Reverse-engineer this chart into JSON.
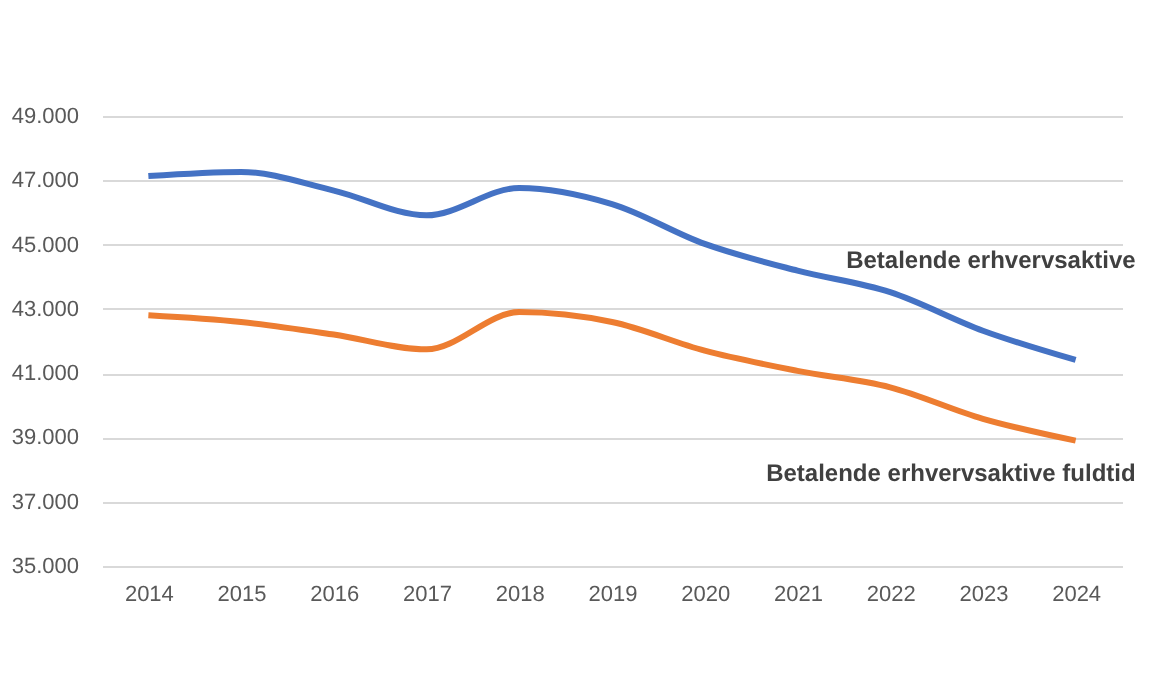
{
  "chart_data": {
    "type": "line",
    "categories": [
      "2014",
      "2015",
      "2016",
      "2017",
      "2018",
      "2019",
      "2020",
      "2021",
      "2022",
      "2023",
      "2024"
    ],
    "series": [
      {
        "name": "Betalende erhvervsaktive",
        "color": "#4472c4",
        "values": [
          47130,
          47260,
          46680,
          45910,
          46760,
          46260,
          45020,
          44190,
          43520,
          42320,
          41410
        ]
      },
      {
        "name": "Betalende erhvervsaktive fuldtid",
        "color": "#ed7d31",
        "values": [
          42800,
          42590,
          42200,
          41740,
          42900,
          42590,
          41700,
          41070,
          40560,
          39580,
          38900
        ]
      }
    ],
    "ylim": [
      35000,
      49000
    ],
    "yticks": [
      {
        "value": 35000,
        "label": "35.000"
      },
      {
        "value": 37000,
        "label": "37.000"
      },
      {
        "value": 39000,
        "label": "39.000"
      },
      {
        "value": 41000,
        "label": "41.000"
      },
      {
        "value": 43000,
        "label": "43.000"
      },
      {
        "value": 45000,
        "label": "45.000"
      },
      {
        "value": 47000,
        "label": "47.000"
      },
      {
        "value": 49000,
        "label": "49.000"
      }
    ],
    "grid": "y",
    "legend": false,
    "marker": "none",
    "line_style": "solid"
  }
}
